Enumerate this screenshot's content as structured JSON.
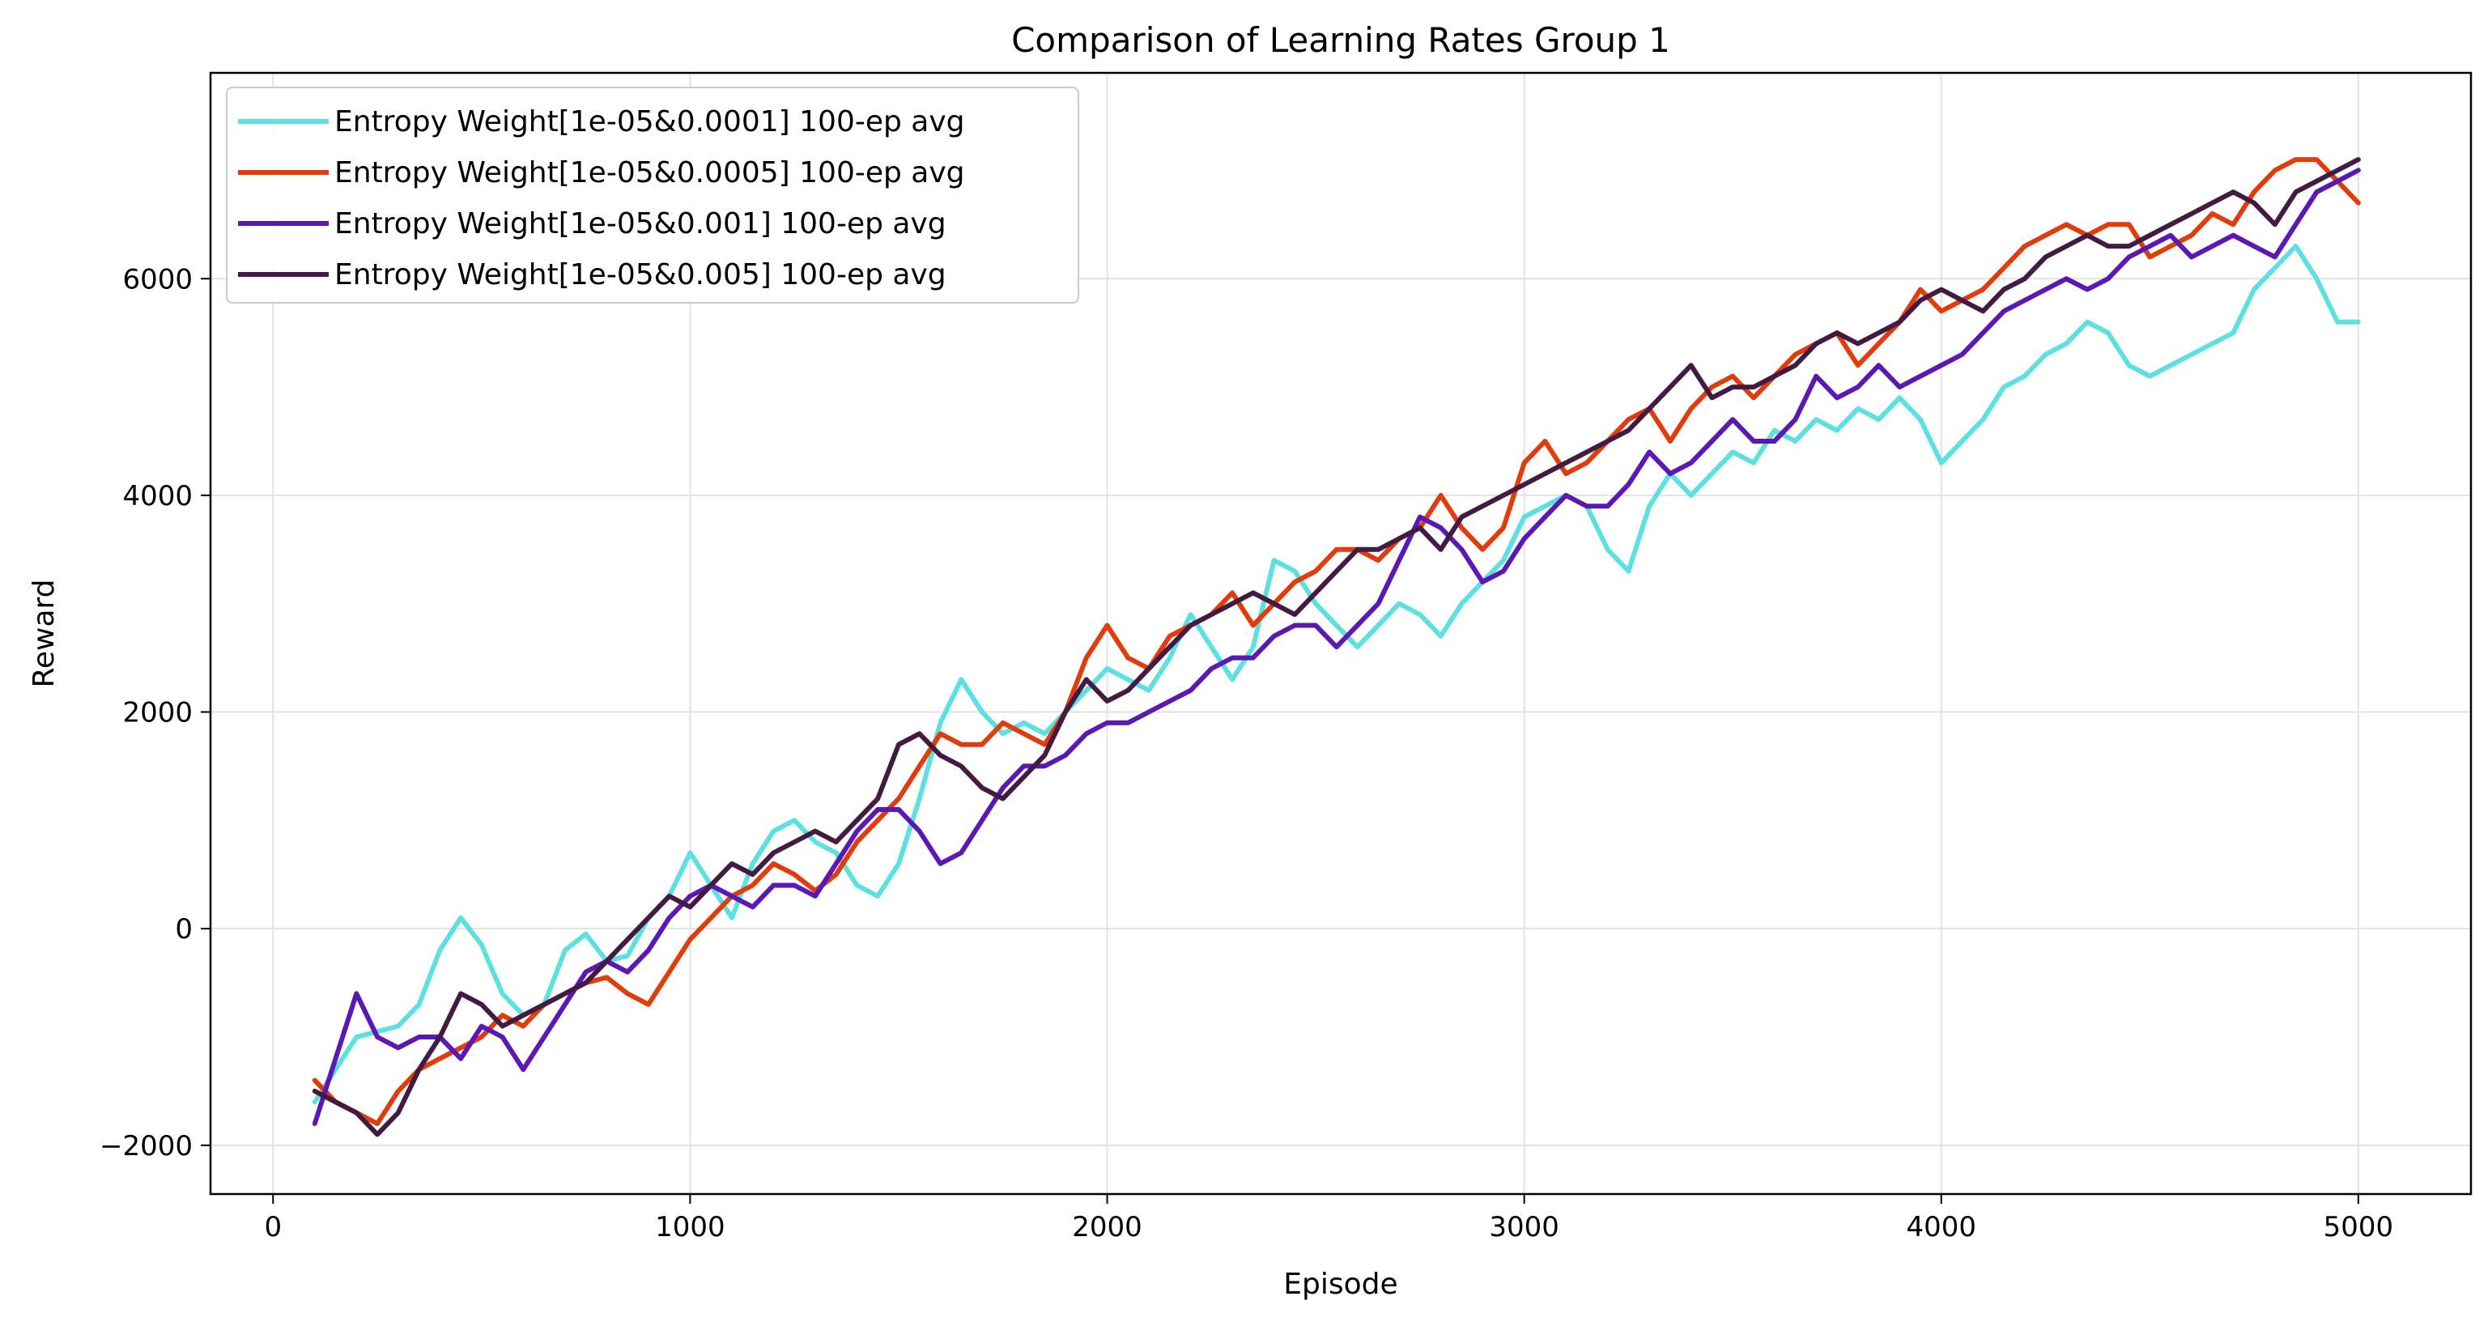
{
  "chart_data": {
    "type": "line",
    "title": "Comparison of Learning Rates Group 1",
    "xlabel": "Episode",
    "ylabel": "Reward",
    "xlim": [
      -150,
      5270
    ],
    "ylim": [
      -2450,
      7900
    ],
    "xticks": [
      0,
      1000,
      2000,
      3000,
      4000,
      5000
    ],
    "yticks": [
      -2000,
      0,
      2000,
      4000,
      6000
    ],
    "xtick_labels": [
      "0",
      "1000",
      "2000",
      "3000",
      "4000",
      "5000"
    ],
    "ytick_labels": [
      "−2000",
      "0",
      "2000",
      "4000",
      "6000"
    ],
    "grid": true,
    "legend_position": "top-left",
    "series": [
      {
        "name": "Entropy Weight[1e-05&0.0001] 100-ep avg",
        "color": "#5ce0e0",
        "x": [
          100,
          150,
          200,
          250,
          300,
          350,
          400,
          450,
          500,
          550,
          600,
          650,
          700,
          750,
          800,
          850,
          900,
          950,
          1000,
          1050,
          1100,
          1150,
          1200,
          1250,
          1300,
          1350,
          1400,
          1450,
          1500,
          1550,
          1600,
          1650,
          1700,
          1750,
          1800,
          1850,
          1900,
          1950,
          2000,
          2050,
          2100,
          2150,
          2200,
          2250,
          2300,
          2350,
          2400,
          2450,
          2500,
          2550,
          2600,
          2650,
          2700,
          2750,
          2800,
          2850,
          2900,
          2950,
          3000,
          3050,
          3100,
          3150,
          3200,
          3250,
          3300,
          3350,
          3400,
          3450,
          3500,
          3550,
          3600,
          3650,
          3700,
          3750,
          3800,
          3850,
          3900,
          3950,
          4000,
          4050,
          4100,
          4150,
          4200,
          4250,
          4300,
          4350,
          4400,
          4450,
          4500,
          4550,
          4600,
          4650,
          4700,
          4750,
          4800,
          4850,
          4900,
          4950,
          5000
        ],
        "values": [
          -1600,
          -1300,
          -1000,
          -950,
          -900,
          -700,
          -200,
          100,
          -150,
          -600,
          -800,
          -700,
          -200,
          -50,
          -300,
          -250,
          100,
          300,
          700,
          400,
          100,
          600,
          900,
          1000,
          800,
          700,
          400,
          300,
          600,
          1200,
          1900,
          2300,
          2000,
          1800,
          1900,
          1800,
          2000,
          2200,
          2400,
          2300,
          2200,
          2500,
          2900,
          2600,
          2300,
          2600,
          3400,
          3300,
          3000,
          2800,
          2600,
          2800,
          3000,
          2900,
          2700,
          3000,
          3200,
          3400,
          3800,
          3900,
          4000,
          3900,
          3500,
          3300,
          3900,
          4200,
          4000,
          4200,
          4400,
          4300,
          4600,
          4500,
          4700,
          4600,
          4800,
          4700,
          4900,
          4700,
          4300,
          4500,
          4700,
          5000,
          5100,
          5300,
          5400,
          5600,
          5500,
          5200,
          5100,
          5200,
          5300,
          5400,
          5500,
          5900,
          6100,
          6300,
          6000,
          5600,
          5600
        ]
      },
      {
        "name": "Entropy Weight[1e-05&0.0005] 100-ep avg",
        "color": "#e03c0c",
        "x": [
          100,
          150,
          200,
          250,
          300,
          350,
          400,
          450,
          500,
          550,
          600,
          650,
          700,
          750,
          800,
          850,
          900,
          950,
          1000,
          1050,
          1100,
          1150,
          1200,
          1250,
          1300,
          1350,
          1400,
          1450,
          1500,
          1550,
          1600,
          1650,
          1700,
          1750,
          1800,
          1850,
          1900,
          1950,
          2000,
          2050,
          2100,
          2150,
          2200,
          2250,
          2300,
          2350,
          2400,
          2450,
          2500,
          2550,
          2600,
          2650,
          2700,
          2750,
          2800,
          2850,
          2900,
          2950,
          3000,
          3050,
          3100,
          3150,
          3200,
          3250,
          3300,
          3350,
          3400,
          3450,
          3500,
          3550,
          3600,
          3650,
          3700,
          3750,
          3800,
          3850,
          3900,
          3950,
          4000,
          4050,
          4100,
          4150,
          4200,
          4250,
          4300,
          4350,
          4400,
          4450,
          4500,
          4550,
          4600,
          4650,
          4700,
          4750,
          4800,
          4850,
          4900,
          4950,
          5000
        ],
        "values": [
          -1400,
          -1600,
          -1700,
          -1800,
          -1500,
          -1300,
          -1200,
          -1100,
          -1000,
          -800,
          -900,
          -700,
          -600,
          -500,
          -450,
          -600,
          -700,
          -400,
          -100,
          100,
          300,
          400,
          600,
          500,
          350,
          500,
          800,
          1000,
          1200,
          1500,
          1800,
          1700,
          1700,
          1900,
          1800,
          1700,
          2000,
          2500,
          2800,
          2500,
          2400,
          2700,
          2800,
          2900,
          3100,
          2800,
          3000,
          3200,
          3300,
          3500,
          3500,
          3400,
          3600,
          3700,
          4000,
          3700,
          3500,
          3700,
          4300,
          4500,
          4200,
          4300,
          4500,
          4700,
          4800,
          4500,
          4800,
          5000,
          5100,
          4900,
          5100,
          5300,
          5400,
          5500,
          5200,
          5400,
          5600,
          5900,
          5700,
          5800,
          5900,
          6100,
          6300,
          6400,
          6500,
          6400,
          6500,
          6500,
          6200,
          6300,
          6400,
          6600,
          6500,
          6800,
          7000,
          7100,
          7100,
          6900,
          6700
        ]
      },
      {
        "name": "Entropy Weight[1e-05&0.001] 100-ep avg",
        "color": "#5c18b4",
        "x": [
          100,
          150,
          200,
          250,
          300,
          350,
          400,
          450,
          500,
          550,
          600,
          650,
          700,
          750,
          800,
          850,
          900,
          950,
          1000,
          1050,
          1100,
          1150,
          1200,
          1250,
          1300,
          1350,
          1400,
          1450,
          1500,
          1550,
          1600,
          1650,
          1700,
          1750,
          1800,
          1850,
          1900,
          1950,
          2000,
          2050,
          2100,
          2150,
          2200,
          2250,
          2300,
          2350,
          2400,
          2450,
          2500,
          2550,
          2600,
          2650,
          2700,
          2750,
          2800,
          2850,
          2900,
          2950,
          3000,
          3050,
          3100,
          3150,
          3200,
          3250,
          3300,
          3350,
          3400,
          3450,
          3500,
          3550,
          3600,
          3650,
          3700,
          3750,
          3800,
          3850,
          3900,
          3950,
          4000,
          4050,
          4100,
          4150,
          4200,
          4250,
          4300,
          4350,
          4400,
          4450,
          4500,
          4550,
          4600,
          4650,
          4700,
          4750,
          4800,
          4850,
          4900,
          4950,
          5000
        ],
        "values": [
          -1800,
          -1200,
          -600,
          -1000,
          -1100,
          -1000,
          -1000,
          -1200,
          -900,
          -1000,
          -1300,
          -1000,
          -700,
          -400,
          -300,
          -400,
          -200,
          100,
          300,
          400,
          300,
          200,
          400,
          400,
          300,
          600,
          900,
          1100,
          1100,
          900,
          600,
          700,
          1000,
          1300,
          1500,
          1500,
          1600,
          1800,
          1900,
          1900,
          2000,
          2100,
          2200,
          2400,
          2500,
          2500,
          2700,
          2800,
          2800,
          2600,
          2800,
          3000,
          3400,
          3800,
          3700,
          3500,
          3200,
          3300,
          3600,
          3800,
          4000,
          3900,
          3900,
          4100,
          4400,
          4200,
          4300,
          4500,
          4700,
          4500,
          4500,
          4700,
          5100,
          4900,
          5000,
          5200,
          5000,
          5100,
          5200,
          5300,
          5500,
          5700,
          5800,
          5900,
          6000,
          5900,
          6000,
          6200,
          6300,
          6400,
          6200,
          6300,
          6400,
          6300,
          6200,
          6500,
          6800,
          6900,
          7000
        ]
      },
      {
        "name": "Entropy Weight[1e-05&0.005] 100-ep avg",
        "color": "#421a42",
        "x": [
          100,
          150,
          200,
          250,
          300,
          350,
          400,
          450,
          500,
          550,
          600,
          650,
          700,
          750,
          800,
          850,
          900,
          950,
          1000,
          1050,
          1100,
          1150,
          1200,
          1250,
          1300,
          1350,
          1400,
          1450,
          1500,
          1550,
          1600,
          1650,
          1700,
          1750,
          1800,
          1850,
          1900,
          1950,
          2000,
          2050,
          2100,
          2150,
          2200,
          2250,
          2300,
          2350,
          2400,
          2450,
          2500,
          2550,
          2600,
          2650,
          2700,
          2750,
          2800,
          2850,
          2900,
          2950,
          3000,
          3050,
          3100,
          3150,
          3200,
          3250,
          3300,
          3350,
          3400,
          3450,
          3500,
          3550,
          3600,
          3650,
          3700,
          3750,
          3800,
          3850,
          3900,
          3950,
          4000,
          4050,
          4100,
          4150,
          4200,
          4250,
          4300,
          4350,
          4400,
          4450,
          4500,
          4550,
          4600,
          4650,
          4700,
          4750,
          4800,
          4850,
          4900,
          4950,
          5000
        ],
        "values": [
          -1500,
          -1600,
          -1700,
          -1900,
          -1700,
          -1300,
          -1000,
          -600,
          -700,
          -900,
          -800,
          -700,
          -600,
          -500,
          -300,
          -100,
          100,
          300,
          200,
          400,
          600,
          500,
          700,
          800,
          900,
          800,
          1000,
          1200,
          1700,
          1800,
          1600,
          1500,
          1300,
          1200,
          1400,
          1600,
          2000,
          2300,
          2100,
          2200,
          2400,
          2600,
          2800,
          2900,
          3000,
          3100,
          3000,
          2900,
          3100,
          3300,
          3500,
          3500,
          3600,
          3700,
          3500,
          3800,
          3900,
          4000,
          4100,
          4200,
          4300,
          4400,
          4500,
          4600,
          4800,
          5000,
          5200,
          4900,
          5000,
          5000,
          5100,
          5200,
          5400,
          5500,
          5400,
          5500,
          5600,
          5800,
          5900,
          5800,
          5700,
          5900,
          6000,
          6200,
          6300,
          6400,
          6300,
          6300,
          6400,
          6500,
          6600,
          6700,
          6800,
          6700,
          6500,
          6800,
          6900,
          7000,
          7100
        ]
      }
    ]
  }
}
